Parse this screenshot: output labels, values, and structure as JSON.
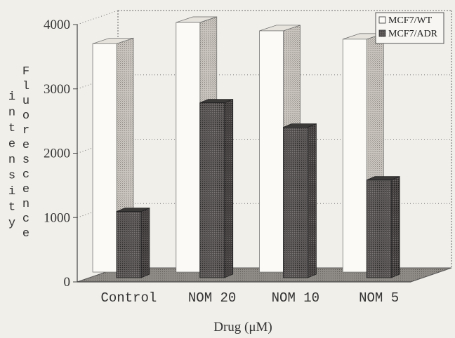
{
  "chart_data": {
    "type": "bar",
    "style": "3d-clustered",
    "title": "",
    "xlabel": "Drug (μM)",
    "ylabel_col1": "intensity",
    "ylabel_col2": "Fluorescence",
    "ylim": [
      0,
      4000
    ],
    "yticks": [
      "0",
      "1000",
      "2000",
      "3000",
      "4000"
    ],
    "categories": [
      "Control",
      "NOM 20",
      "NOM 10",
      "NOM 5"
    ],
    "series": [
      {
        "name": "MCF7/WT",
        "values": [
          3550,
          3880,
          3750,
          3620
        ],
        "color": "#fbfaf6"
      },
      {
        "name": "MCF7/ADR",
        "values": [
          1050,
          2740,
          2360,
          1540
        ],
        "color": "#4a4646"
      }
    ],
    "grid": true,
    "legend_position": "top-right"
  }
}
